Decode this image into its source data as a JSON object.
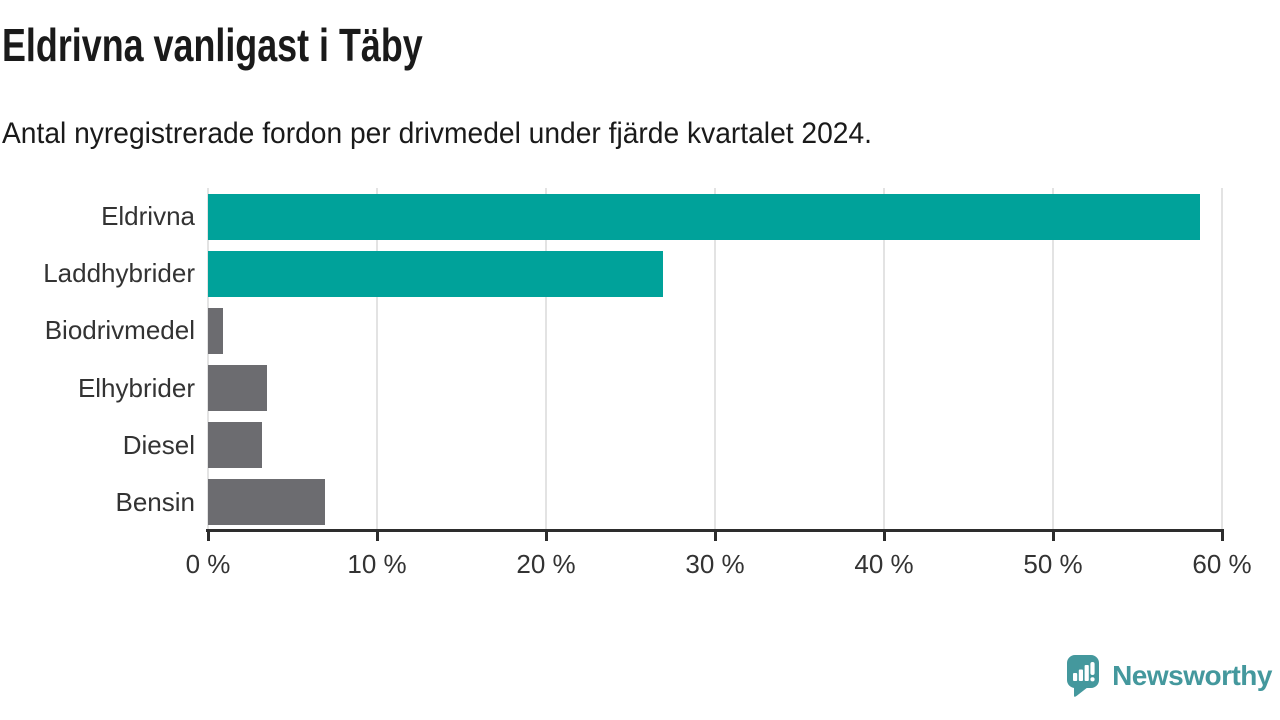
{
  "title": "Eldrivna vanligast i Täby",
  "subtitle": "Antal nyregistrerade fordon per drivmedel under fjärde kvartalet 2024.",
  "branding": {
    "logo_text": "Newsworthy",
    "logo_icon": "speech-bubble-with-bar-chart-and-exclamation"
  },
  "colors": {
    "background": "#FFFFFF",
    "highlight_bar": "#00A29A",
    "neutral_bar": "#6C6C70",
    "axis": "#2D2D2D",
    "grid": "#E3E3E3",
    "tick_label": "#333333",
    "category_label": "#333333",
    "title_text": "#1A1A1A",
    "logo": "#44989D"
  },
  "chart_data": {
    "type": "bar",
    "orientation": "horizontal",
    "title": "Eldrivna vanligast i Täby",
    "subtitle": "Antal nyregistrerade fordon per drivmedel under fjärde kvartalet 2024.",
    "categories": [
      "Eldrivna",
      "Laddhybrider",
      "Biodrivmedel",
      "Elhybrider",
      "Diesel",
      "Bensin"
    ],
    "values": [
      58.7,
      26.9,
      0.9,
      3.5,
      3.2,
      6.9
    ],
    "unit": "%",
    "bar_colors": [
      "#00A29A",
      "#00A29A",
      "#6C6C70",
      "#6C6C70",
      "#6C6C70",
      "#6C6C70"
    ],
    "xlabel": "",
    "ylabel": "",
    "xlim": [
      0,
      60
    ],
    "x_ticks": [
      0,
      10,
      20,
      30,
      40,
      50,
      60
    ],
    "x_tick_labels": [
      "0 %",
      "10 %",
      "20 %",
      "30 %",
      "40 %",
      "50 %",
      "60 %"
    ],
    "grid": "vertical-gridlines-on",
    "legend": "none"
  }
}
